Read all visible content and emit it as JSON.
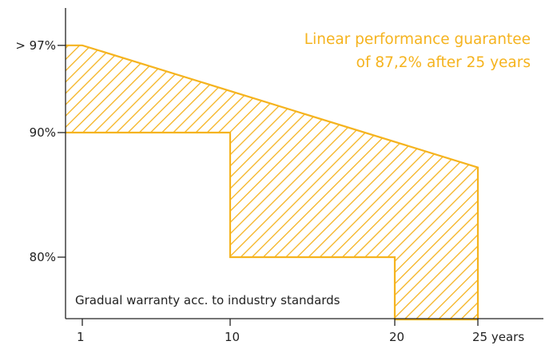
{
  "chart_data": {
    "type": "area",
    "title": "",
    "xlabel": "",
    "ylabel": "",
    "x_ticks": [
      {
        "value": 1,
        "label": "1"
      },
      {
        "value": 10,
        "label": "10"
      },
      {
        "value": 20,
        "label": "20"
      },
      {
        "value": 25,
        "label": "25 years"
      }
    ],
    "y_ticks": [
      {
        "value": 97,
        "label": "> 97%"
      },
      {
        "value": 90,
        "label": "90%"
      },
      {
        "value": 80,
        "label": "80%"
      }
    ],
    "series": [
      {
        "role": "linear_guarantee",
        "points": [
          [
            0,
            97
          ],
          [
            1,
            97
          ],
          [
            25,
            87.2
          ]
        ]
      },
      {
        "role": "industry_step_warranty",
        "points": [
          [
            0,
            90
          ],
          [
            10,
            90
          ],
          [
            10,
            80
          ],
          [
            20,
            80
          ],
          [
            20,
            75
          ]
        ]
      }
    ],
    "annotations": {
      "guarantee_line1": "Linear performance guarantee",
      "guarantee_line2": "of 87,2% after 25 years",
      "industry_note": "Gradual warranty acc. to industry standards"
    },
    "colors": {
      "accent": "#f5b31e",
      "hatch": "#f5b31e",
      "axis": "#222222"
    }
  }
}
